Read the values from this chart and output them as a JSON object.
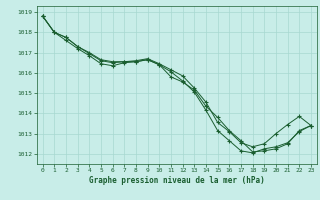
{
  "title": "Graphe pression niveau de la mer (hPa)",
  "bg_color": "#c8ede8",
  "grid_color": "#a8d8d0",
  "line_color": "#1a5e30",
  "marker": "+",
  "xlim": [
    -0.5,
    23.5
  ],
  "ylim": [
    1011.5,
    1019.3
  ],
  "yticks": [
    1012,
    1013,
    1014,
    1015,
    1016,
    1017,
    1018,
    1019
  ],
  "xticks": [
    0,
    1,
    2,
    3,
    4,
    5,
    6,
    7,
    8,
    9,
    10,
    11,
    12,
    13,
    14,
    15,
    16,
    17,
    18,
    19,
    20,
    21,
    22,
    23
  ],
  "series": [
    [
      1018.8,
      1018.0,
      1017.75,
      1017.3,
      1017.0,
      1016.65,
      1016.55,
      1016.55,
      1016.55,
      1016.65,
      1016.4,
      1015.8,
      1015.55,
      1015.15,
      1014.35,
      1013.8,
      1013.15,
      1012.65,
      1012.1,
      1012.15,
      1012.25,
      1012.5,
      1013.15,
      1013.4
    ],
    [
      1018.8,
      1018.0,
      1017.75,
      1017.3,
      1016.95,
      1016.6,
      1016.5,
      1016.55,
      1016.6,
      1016.7,
      1016.45,
      1016.15,
      1015.85,
      1015.25,
      1014.55,
      1013.55,
      1013.1,
      1012.55,
      1012.35,
      1012.5,
      1013.0,
      1013.45,
      1013.85,
      1013.4
    ],
    [
      1018.8,
      1018.0,
      1017.6,
      1017.2,
      1016.85,
      1016.45,
      1016.35,
      1016.5,
      1016.55,
      1016.65,
      1016.4,
      1016.05,
      1015.6,
      1015.05,
      1014.15,
      1013.15,
      1012.65,
      1012.15,
      1012.05,
      1012.25,
      1012.35,
      1012.55,
      1013.1,
      1013.4
    ]
  ]
}
